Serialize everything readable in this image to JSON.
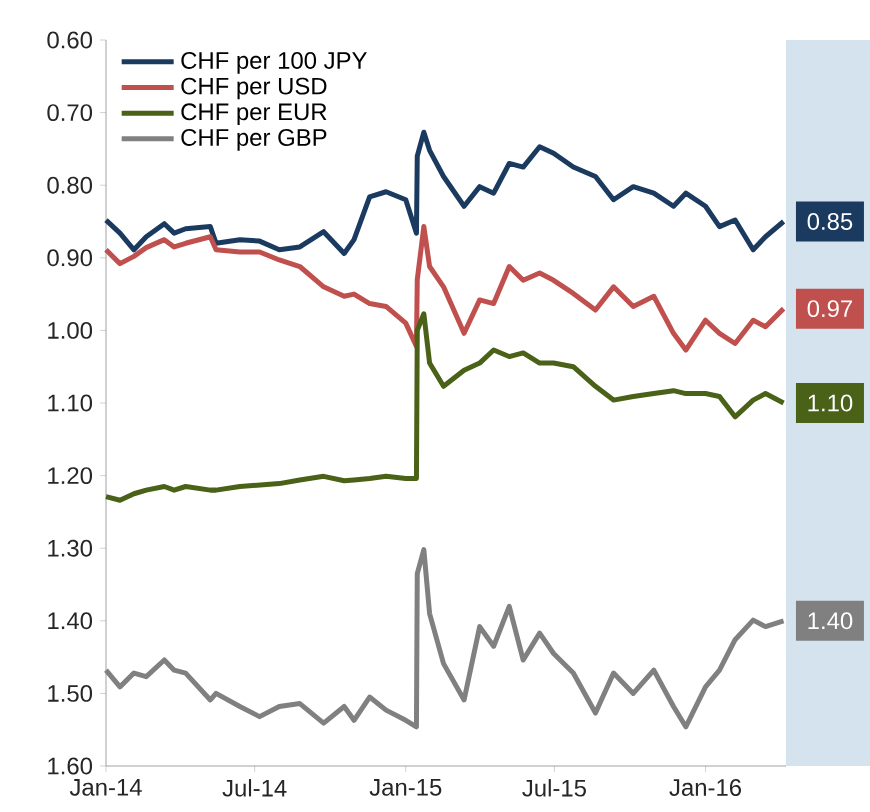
{
  "chart_data": {
    "type": "line",
    "x": [
      "2014-01-01",
      "2014-01-18",
      "2014-02-04",
      "2014-02-19",
      "2014-03-13",
      "2014-03-25",
      "2014-04-08",
      "2014-05-08",
      "2014-05-15",
      "2014-06-13",
      "2014-07-07",
      "2014-07-31",
      "2014-08-25",
      "2014-09-23",
      "2014-10-18",
      "2014-10-30",
      "2014-11-18",
      "2014-12-08",
      "2015-01-01",
      "2015-01-14",
      "2015-01-15",
      "2015-01-23",
      "2015-01-30",
      "2015-02-16",
      "2015-03-13",
      "2015-04-01",
      "2015-04-18",
      "2015-05-07",
      "2015-05-24",
      "2015-06-13",
      "2015-06-30",
      "2015-07-24",
      "2015-08-20",
      "2015-09-11",
      "2015-10-05",
      "2015-10-30",
      "2015-11-23",
      "2015-12-08",
      "2016-01-01",
      "2016-01-18",
      "2016-02-06",
      "2016-02-28",
      "2016-03-14",
      "2016-04-05"
    ],
    "series": [
      {
        "name": "CHF per 100 JPY",
        "color": "#1b3a5f",
        "values": [
          0.848,
          0.866,
          0.889,
          0.871,
          0.853,
          0.866,
          0.86,
          0.857,
          0.88,
          0.875,
          0.877,
          0.889,
          0.885,
          0.864,
          0.894,
          0.875,
          0.816,
          0.809,
          0.82,
          0.866,
          0.76,
          0.727,
          0.752,
          0.788,
          0.829,
          0.802,
          0.811,
          0.77,
          0.775,
          0.747,
          0.756,
          0.775,
          0.788,
          0.82,
          0.802,
          0.811,
          0.829,
          0.811,
          0.829,
          0.857,
          0.848,
          0.889,
          0.871,
          0.85
        ],
        "value_labels": [
          null,
          null,
          null,
          null,
          null,
          null,
          null,
          null,
          null,
          null,
          null,
          null,
          null,
          null,
          null,
          null,
          null,
          null,
          null,
          null,
          null,
          null,
          null,
          null,
          null,
          null,
          null,
          null,
          null,
          null,
          null,
          null,
          null,
          null,
          null,
          null,
          null,
          null,
          null,
          null,
          null,
          null,
          null,
          "0.85"
        ]
      },
      {
        "name": "CHF per USD",
        "color": "#c0504d",
        "values": [
          0.889,
          0.908,
          0.898,
          0.886,
          0.875,
          0.885,
          0.88,
          0.871,
          0.889,
          0.892,
          0.892,
          0.903,
          0.912,
          0.94,
          0.953,
          0.95,
          0.963,
          0.967,
          0.99,
          1.022,
          0.93,
          0.857,
          0.912,
          0.94,
          1.004,
          0.958,
          0.963,
          0.912,
          0.931,
          0.921,
          0.931,
          0.949,
          0.972,
          0.94,
          0.967,
          0.953,
          1.004,
          1.027,
          0.986,
          1.004,
          1.018,
          0.986,
          0.995,
          0.97
        ],
        "value_labels": [
          null,
          null,
          null,
          null,
          null,
          null,
          null,
          null,
          null,
          null,
          null,
          null,
          null,
          null,
          null,
          null,
          null,
          null,
          null,
          null,
          null,
          null,
          null,
          null,
          null,
          null,
          null,
          null,
          null,
          null,
          null,
          null,
          null,
          null,
          null,
          null,
          null,
          null,
          null,
          null,
          null,
          null,
          null,
          "0.97"
        ]
      },
      {
        "name": "CHF per EUR",
        "color": "#4a6118",
        "values": [
          1.229,
          1.234,
          1.225,
          1.22,
          1.215,
          1.22,
          1.215,
          1.22,
          1.22,
          1.215,
          1.213,
          1.211,
          1.206,
          1.201,
          1.207,
          1.206,
          1.204,
          1.201,
          1.204,
          1.204,
          1.0,
          0.977,
          1.045,
          1.077,
          1.055,
          1.045,
          1.027,
          1.036,
          1.031,
          1.045,
          1.045,
          1.05,
          1.077,
          1.096,
          1.091,
          1.087,
          1.083,
          1.087,
          1.087,
          1.091,
          1.119,
          1.096,
          1.087,
          1.1
        ],
        "value_labels": [
          null,
          null,
          null,
          null,
          null,
          null,
          null,
          null,
          null,
          null,
          null,
          null,
          null,
          null,
          null,
          null,
          null,
          null,
          null,
          null,
          null,
          null,
          null,
          null,
          null,
          null,
          null,
          null,
          null,
          null,
          null,
          null,
          null,
          null,
          null,
          null,
          null,
          null,
          null,
          null,
          null,
          null,
          null,
          "1.10"
        ]
      },
      {
        "name": "CHF per GBP",
        "color": "#808080",
        "values": [
          1.468,
          1.491,
          1.472,
          1.477,
          1.454,
          1.468,
          1.472,
          1.509,
          1.5,
          1.518,
          1.532,
          1.518,
          1.514,
          1.541,
          1.518,
          1.537,
          1.505,
          1.523,
          1.537,
          1.546,
          1.335,
          1.302,
          1.39,
          1.459,
          1.509,
          1.408,
          1.435,
          1.38,
          1.454,
          1.417,
          1.445,
          1.472,
          1.527,
          1.472,
          1.5,
          1.468,
          1.518,
          1.546,
          1.491,
          1.468,
          1.426,
          1.399,
          1.408,
          1.4
        ],
        "value_labels": [
          null,
          null,
          null,
          null,
          null,
          null,
          null,
          null,
          null,
          null,
          null,
          null,
          null,
          null,
          null,
          null,
          null,
          null,
          null,
          null,
          null,
          null,
          null,
          null,
          null,
          null,
          null,
          null,
          null,
          null,
          null,
          null,
          null,
          null,
          null,
          null,
          null,
          null,
          null,
          null,
          null,
          null,
          null,
          "1.40"
        ]
      }
    ],
    "xlim": [
      "2014-01-01",
      "2016-04-08"
    ],
    "xticks": [
      {
        "value": "2014-01-01",
        "label": "Jan-14"
      },
      {
        "value": "2014-07-01",
        "label": "Jul-14"
      },
      {
        "value": "2015-01-01",
        "label": "Jan-15"
      },
      {
        "value": "2015-07-01",
        "label": "Jul-15"
      },
      {
        "value": "2016-01-01",
        "label": "Jan-16"
      }
    ],
    "ylim": [
      1.6,
      0.6
    ],
    "yticks": [
      {
        "value": 0.6,
        "label": "0.60"
      },
      {
        "value": 0.7,
        "label": "0.70"
      },
      {
        "value": 0.8,
        "label": "0.80"
      },
      {
        "value": 0.9,
        "label": "0.90"
      },
      {
        "value": 1.0,
        "label": "1.00"
      },
      {
        "value": 1.1,
        "label": "1.10"
      },
      {
        "value": 1.2,
        "label": "1.20"
      },
      {
        "value": 1.3,
        "label": "1.30"
      },
      {
        "value": 1.4,
        "label": "1.40"
      },
      {
        "value": 1.5,
        "label": "1.50"
      },
      {
        "value": 1.6,
        "label": "1.60"
      }
    ],
    "legend": "top left"
  }
}
